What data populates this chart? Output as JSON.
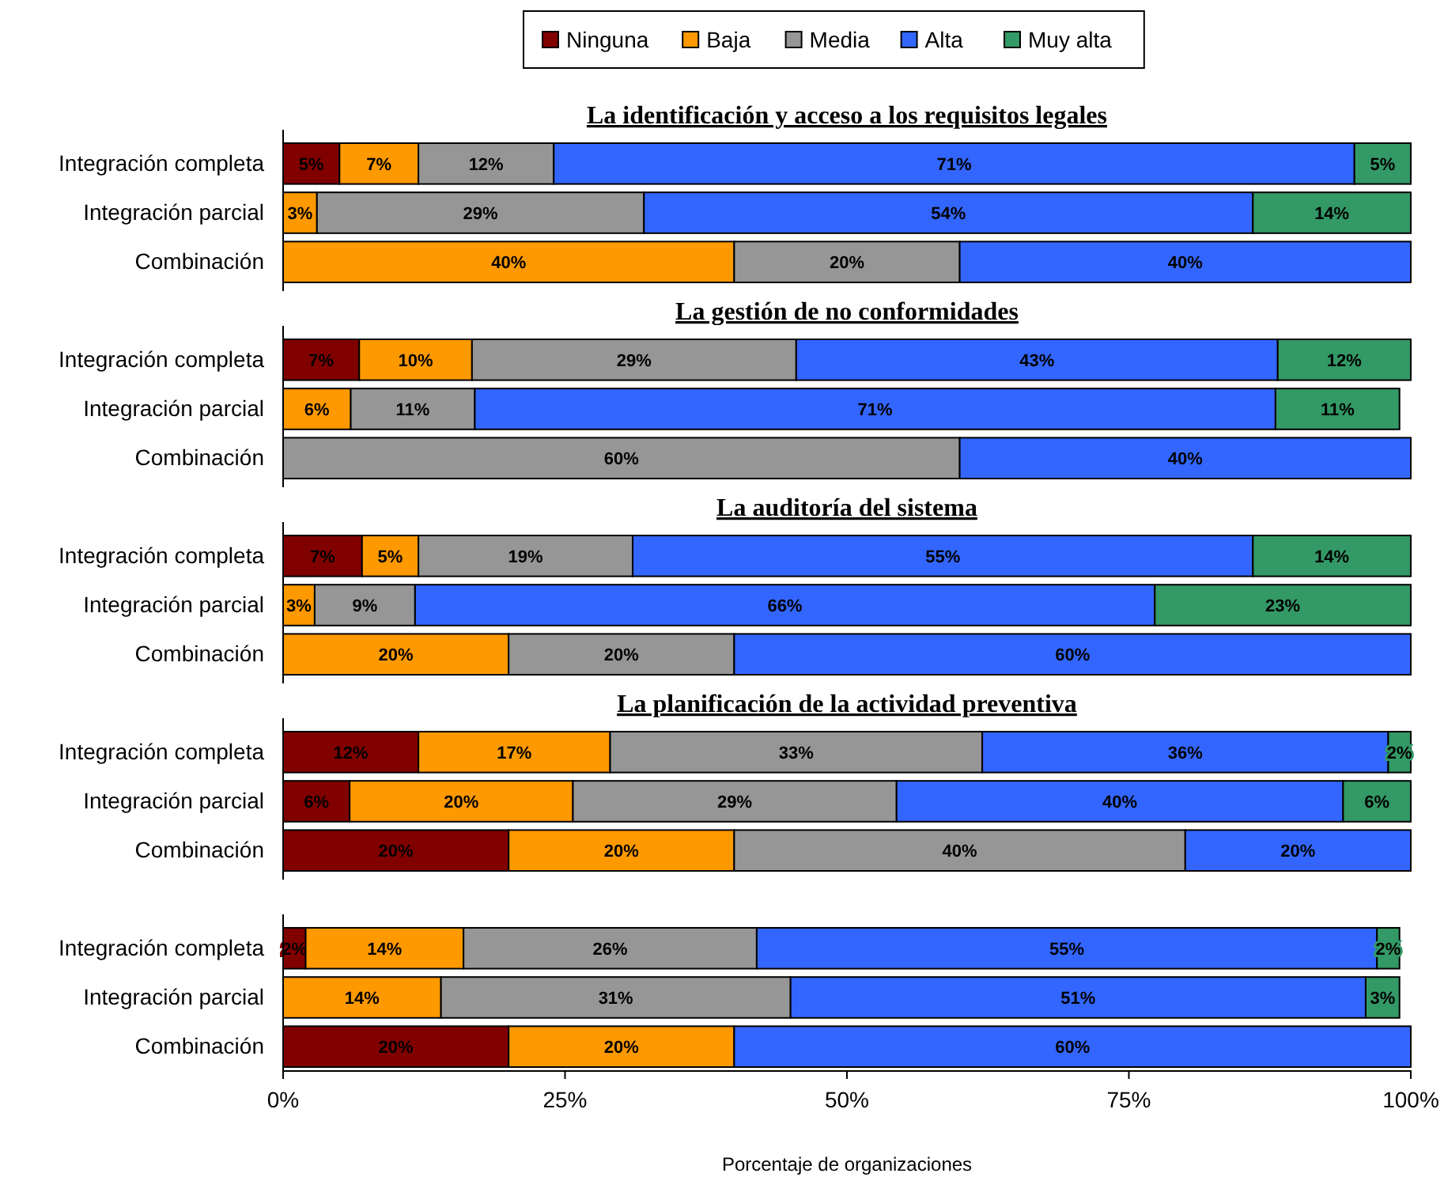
{
  "chart_data": [
    {
      "type": "bar",
      "orientation": "horizontal",
      "stacked": true,
      "title": "La identificación y acceso a los requisitos legales",
      "categories": [
        "Integración completa",
        "Integración parcial",
        "Combinación"
      ],
      "xlim": [
        0,
        100
      ],
      "tick_labels": "y",
      "legend": "top",
      "series": [
        {
          "name": "Ninguna",
          "color": "#800000",
          "values": [
            5,
            null,
            null
          ],
          "value_labels": [
            "5%",
            null,
            null
          ]
        },
        {
          "name": "Baja",
          "color": "#ff9900",
          "values": [
            7,
            3,
            40
          ],
          "value_labels": [
            "7%",
            "3%",
            "40%"
          ]
        },
        {
          "name": "Media",
          "color": "#969696",
          "values": [
            12,
            29,
            20
          ],
          "value_labels": [
            "12%",
            "29%",
            "20%"
          ]
        },
        {
          "name": "Alta",
          "color": "#3366ff",
          "values": [
            71,
            54,
            40
          ],
          "value_labels": [
            "71%",
            "54%",
            "40%"
          ]
        },
        {
          "name": "Muy alta",
          "color": "#339966",
          "values": [
            5,
            14,
            null
          ],
          "value_labels": [
            "5%",
            "14%",
            null
          ]
        }
      ]
    },
    {
      "type": "bar",
      "orientation": "horizontal",
      "stacked": true,
      "title": "La gestión de no conformidades",
      "categories": [
        "Integración completa",
        "Integración parcial",
        "Combinación"
      ],
      "xlim": [
        0,
        100
      ],
      "tick_labels": "y",
      "series": [
        {
          "color": "#800000",
          "values": [
            6.75,
            null,
            null
          ],
          "value_labels": [
            "7%",
            null,
            null
          ]
        },
        {
          "color": "#ff9900",
          "values": [
            10,
            6,
            null
          ],
          "value_labels": [
            "10%",
            "6%",
            null
          ]
        },
        {
          "color": "#969696",
          "values": [
            28.75,
            11,
            60
          ],
          "value_labels": [
            "29%",
            "11%",
            "60%"
          ]
        },
        {
          "color": "#3366ff",
          "values": [
            42.7,
            71,
            40
          ],
          "value_labels": [
            "43%",
            "71%",
            "40%"
          ]
        },
        {
          "color": "#339966",
          "values": [
            11.8,
            11,
            null
          ],
          "value_labels": [
            "12%",
            "11%",
            null
          ]
        }
      ]
    },
    {
      "type": "bar",
      "orientation": "horizontal",
      "stacked": true,
      "title": "La auditoría del sistema",
      "categories": [
        "Integración completa",
        "Integración parcial",
        "Combinación"
      ],
      "xlim": [
        0,
        100
      ],
      "tick_labels": "y",
      "series": [
        {
          "color": "#800000",
          "values": [
            7,
            null,
            null
          ],
          "value_labels": [
            "7%",
            null,
            null
          ]
        },
        {
          "color": "#ff9900",
          "values": [
            5,
            2.8,
            20
          ],
          "value_labels": [
            "5%",
            "3%",
            "20%"
          ]
        },
        {
          "color": "#969696",
          "values": [
            19,
            8.9,
            20
          ],
          "value_labels": [
            "19%",
            "9%",
            "20%"
          ]
        },
        {
          "color": "#3366ff",
          "values": [
            55,
            65.6,
            60
          ],
          "value_labels": [
            "55%",
            "66%",
            "60%"
          ]
        },
        {
          "color": "#339966",
          "values": [
            14,
            22.7,
            null
          ],
          "value_labels": [
            "14%",
            "23%",
            null
          ]
        }
      ]
    },
    {
      "type": "bar",
      "orientation": "horizontal",
      "stacked": true,
      "title": "La planificación de la actividad preventiva",
      "categories": [
        "Integración completa",
        "Integración parcial",
        "Combinación"
      ],
      "xlim": [
        0,
        100
      ],
      "tick_labels": "y",
      "series": [
        {
          "color": "#800000",
          "values": [
            12,
            5.9,
            20
          ],
          "value_labels": [
            "12%",
            "6%",
            "20%"
          ]
        },
        {
          "color": "#ff9900",
          "values": [
            17,
            19.8,
            20
          ],
          "value_labels": [
            "17%",
            "20%",
            "20%"
          ]
        },
        {
          "color": "#969696",
          "values": [
            33,
            28.7,
            40
          ],
          "value_labels": [
            "33%",
            "29%",
            "40%"
          ]
        },
        {
          "color": "#3366ff",
          "values": [
            36,
            39.6,
            20
          ],
          "value_labels": [
            "36%",
            "40%",
            "20%"
          ]
        },
        {
          "color": "#339966",
          "values": [
            2,
            6,
            null
          ],
          "value_labels": [
            "2%",
            "6%",
            null
          ]
        }
      ]
    },
    {
      "type": "bar",
      "orientation": "horizontal",
      "stacked": true,
      "categories": [
        "Integración completa",
        "Integración parcial",
        "Combinación"
      ],
      "xlim": [
        0,
        100
      ],
      "xticks": [
        {
          "value": 0,
          "label": "0%"
        },
        {
          "value": 25,
          "label": "25%"
        },
        {
          "value": 50,
          "label": "50%"
        },
        {
          "value": 75,
          "label": "75%"
        },
        {
          "value": 100,
          "label": "100%"
        }
      ],
      "xlabel": "Porcentaje de organizaciones",
      "series": [
        {
          "color": "#800000",
          "values": [
            2,
            null,
            20
          ],
          "value_labels": [
            "2%",
            null,
            "20%"
          ]
        },
        {
          "color": "#ff9900",
          "values": [
            14,
            14,
            20
          ],
          "value_labels": [
            "14%",
            "14%",
            "20%"
          ]
        },
        {
          "color": "#969696",
          "values": [
            26,
            31,
            null
          ],
          "value_labels": [
            "26%",
            "31%",
            null
          ]
        },
        {
          "color": "#3366ff",
          "values": [
            55,
            51,
            60
          ],
          "value_labels": [
            "55%",
            "51%",
            "60%"
          ]
        },
        {
          "color": "#339966",
          "values": [
            2,
            3,
            null
          ],
          "value_labels": [
            "2%",
            "3%",
            null
          ]
        }
      ]
    }
  ]
}
